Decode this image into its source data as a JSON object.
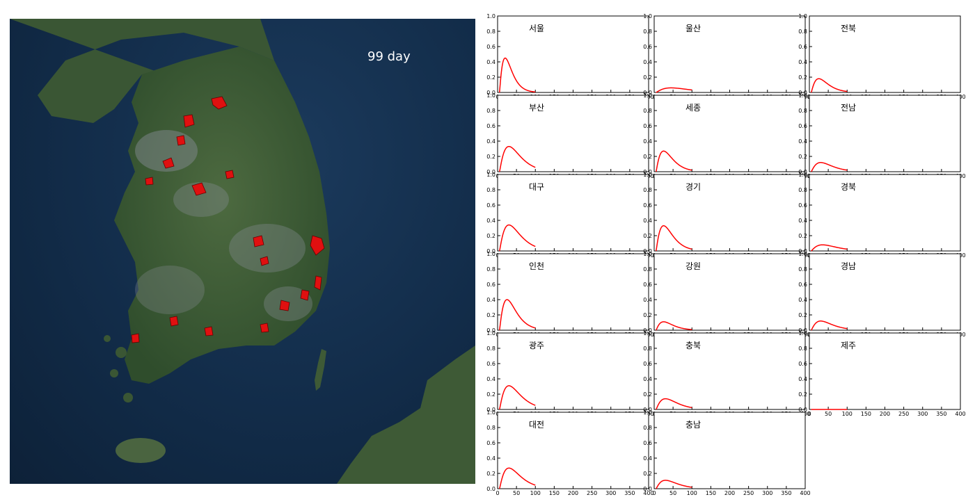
{
  "map": {
    "day_label": "99 day",
    "colors": {
      "sea": "#122c49",
      "land": "#3e5e38",
      "urban": "#8a8f98",
      "hotspot": "#e01010"
    }
  },
  "chart_data": {
    "type": "line",
    "line_color": "#ff0000",
    "x_ticks": [
      "0",
      "50",
      "100",
      "150",
      "200",
      "250",
      "300",
      "350",
      "400"
    ],
    "y_ticks": [
      "0.0",
      "0.2",
      "0.4",
      "0.6",
      "0.8",
      "1.0"
    ],
    "xlim": [
      0,
      400
    ],
    "ylim": [
      0,
      1.0
    ],
    "panels": [
      {
        "label": "서울",
        "peak_x": 20,
        "peak_y": 0.45,
        "end_x": 100
      },
      {
        "label": "울산",
        "peak_x": 45,
        "peak_y": 0.06,
        "end_x": 100
      },
      {
        "label": "전북",
        "peak_x": 25,
        "peak_y": 0.18,
        "end_x": 100
      },
      {
        "label": "부산",
        "peak_x": 30,
        "peak_y": 0.33,
        "end_x": 100
      },
      {
        "label": "세종",
        "peak_x": 25,
        "peak_y": 0.27,
        "end_x": 100
      },
      {
        "label": "전남",
        "peak_x": 30,
        "peak_y": 0.12,
        "end_x": 100
      },
      {
        "label": "대구",
        "peak_x": 30,
        "peak_y": 0.34,
        "end_x": 100
      },
      {
        "label": "경기",
        "peak_x": 25,
        "peak_y": 0.33,
        "end_x": 100
      },
      {
        "label": "경북",
        "peak_x": 35,
        "peak_y": 0.08,
        "end_x": 100
      },
      {
        "label": "인천",
        "peak_x": 25,
        "peak_y": 0.4,
        "end_x": 100
      },
      {
        "label": "강원",
        "peak_x": 25,
        "peak_y": 0.11,
        "end_x": 100
      },
      {
        "label": "경남",
        "peak_x": 30,
        "peak_y": 0.12,
        "end_x": 100
      },
      {
        "label": "광주",
        "peak_x": 30,
        "peak_y": 0.31,
        "end_x": 100
      },
      {
        "label": "충북",
        "peak_x": 30,
        "peak_y": 0.14,
        "end_x": 100
      },
      {
        "label": "제주",
        "peak_x": 30,
        "peak_y": 0.0,
        "end_x": 100
      },
      {
        "label": "대전",
        "peak_x": 30,
        "peak_y": 0.27,
        "end_x": 100
      },
      {
        "label": "충남",
        "peak_x": 30,
        "peak_y": 0.11,
        "end_x": 100
      }
    ]
  }
}
